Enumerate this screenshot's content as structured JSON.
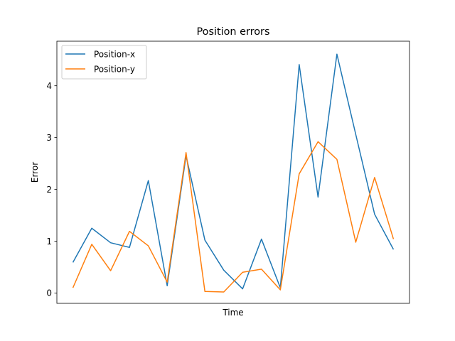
{
  "chart_data": {
    "type": "line",
    "title": "Position errors",
    "xlabel": "Time",
    "ylabel": "Error",
    "ylim": [
      -0.2,
      4.86
    ],
    "yticks": [
      0,
      1,
      2,
      3,
      4
    ],
    "x_ticks_visible": false,
    "grid": false,
    "legend_position": "top-left",
    "x": [
      0,
      1,
      2,
      3,
      4,
      5,
      6,
      7,
      8,
      9,
      10,
      11,
      12,
      13,
      14,
      15,
      16,
      17
    ],
    "series": [
      {
        "name": "Position-x",
        "color": "#1f77b4",
        "values": [
          0.59,
          1.25,
          0.97,
          0.88,
          2.17,
          0.14,
          2.65,
          1.02,
          0.44,
          0.08,
          1.04,
          0.1,
          4.41,
          1.85,
          4.61,
          3.06,
          1.52,
          0.84
        ]
      },
      {
        "name": "Position-y",
        "color": "#ff7f0e",
        "values": [
          0.1,
          0.94,
          0.43,
          1.19,
          0.91,
          0.21,
          2.71,
          0.03,
          0.02,
          0.4,
          0.46,
          0.06,
          2.3,
          2.92,
          2.58,
          0.98,
          2.23,
          1.04
        ]
      }
    ]
  }
}
